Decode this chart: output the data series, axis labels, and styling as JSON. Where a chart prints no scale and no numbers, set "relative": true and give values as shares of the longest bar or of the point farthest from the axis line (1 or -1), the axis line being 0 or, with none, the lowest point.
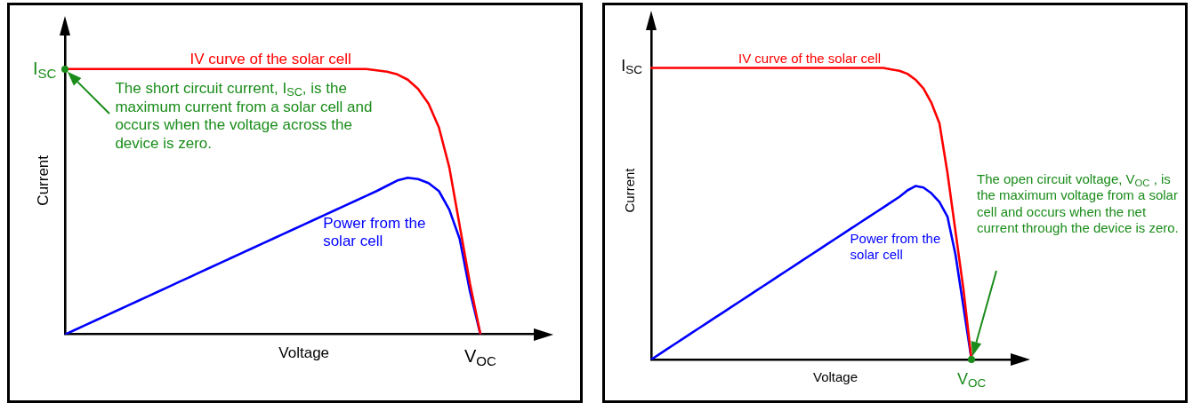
{
  "chart_data": [
    {
      "type": "line",
      "relative": true,
      "xlabel": "Voltage",
      "ylabel": "Current",
      "legend": false,
      "categories": [
        null,
        null,
        null,
        null,
        null,
        null,
        null,
        null,
        null,
        null,
        null,
        null,
        null,
        null,
        null,
        null,
        null,
        null,
        null,
        null,
        null,
        null,
        null,
        null,
        null,
        null,
        null,
        null,
        null,
        null,
        null,
        null,
        null,
        null,
        null,
        null,
        null,
        null,
        null,
        null,
        null,
        null,
        null,
        null,
        null,
        null,
        null
      ],
      "series": [
        {
          "name": "IV curve of the solar cell",
          "color": "#ff0000",
          "values": [
            1,
            1,
            1,
            1,
            1,
            1,
            1,
            1,
            1,
            1,
            1,
            1,
            1,
            1,
            1,
            1,
            1,
            1,
            1,
            1,
            1,
            1,
            1,
            1,
            1,
            1,
            1,
            1,
            1,
            1,
            0.995,
            0.99,
            0.98,
            0.96,
            0.925,
            0.87,
            0.78,
            0.63,
            0.41,
            0.19,
            0,
            null,
            null,
            null,
            null,
            null,
            null
          ]
        },
        {
          "name": "Power from the solar cell",
          "color": "#0000ff",
          "values": [
            0,
            0.018,
            0.036,
            0.054,
            0.072,
            0.09,
            0.108,
            0.126,
            0.144,
            0.162,
            0.18,
            0.198,
            0.216,
            0.234,
            0.252,
            0.27,
            0.288,
            0.306,
            0.324,
            0.342,
            0.36,
            0.378,
            0.396,
            0.414,
            0.432,
            0.45,
            0.468,
            0.486,
            0.504,
            0.522,
            0.54,
            0.56,
            0.58,
            0.59,
            0.585,
            0.57,
            0.54,
            0.47,
            0.36,
            0.16,
            0,
            null,
            null,
            null,
            null,
            null,
            null
          ]
        }
      ],
      "annotations": [
        "I$_{SC}$",
        "V$_{OC}$",
        "The short circuit current, I$_{SC}$, is the maximum current from a solar cell and occurs when the voltage across the device is zero."
      ]
    },
    {
      "type": "line",
      "relative": true,
      "xlabel": "Voltage",
      "ylabel": "Current",
      "legend": false,
      "categories": [
        null,
        null,
        null,
        null,
        null,
        null,
        null,
        null,
        null,
        null,
        null,
        null,
        null,
        null,
        null,
        null,
        null,
        null,
        null,
        null,
        null,
        null,
        null,
        null,
        null,
        null,
        null,
        null,
        null,
        null,
        null,
        null,
        null,
        null,
        null,
        null,
        null,
        null,
        null,
        null,
        null,
        null,
        null,
        null,
        null,
        null,
        null
      ],
      "series": [
        {
          "name": "IV curve of the solar cell",
          "color": "#ff0000",
          "values": [
            1,
            1,
            1,
            1,
            1,
            1,
            1,
            1,
            1,
            1,
            1,
            1,
            1,
            1,
            1,
            1,
            1,
            1,
            1,
            1,
            1,
            1,
            1,
            1,
            1,
            1,
            1,
            1,
            1,
            1,
            0.995,
            0.99,
            0.98,
            0.96,
            0.93,
            0.88,
            0.81,
            0.64,
            0.44,
            0.24,
            0,
            null,
            null,
            null,
            null,
            null,
            null
          ]
        },
        {
          "name": "Power from the solar cell",
          "color": "#0000ff",
          "values": [
            0,
            0.018,
            0.036,
            0.054,
            0.072,
            0.09,
            0.108,
            0.126,
            0.144,
            0.162,
            0.18,
            0.198,
            0.216,
            0.234,
            0.252,
            0.27,
            0.288,
            0.306,
            0.324,
            0.342,
            0.36,
            0.378,
            0.396,
            0.414,
            0.432,
            0.45,
            0.468,
            0.486,
            0.504,
            0.522,
            0.54,
            0.558,
            0.58,
            0.595,
            0.59,
            0.57,
            0.54,
            0.49,
            0.36,
            0.18,
            0,
            null,
            null,
            null,
            null,
            null,
            null
          ]
        }
      ],
      "annotations": [
        "I$_{SC}$",
        "V$_{OC}$",
        "The open circuit voltage, V$_{OC}$ , is the maximum voltage from a solar cell and occurs when the net current through the device is zero."
      ]
    }
  ]
}
